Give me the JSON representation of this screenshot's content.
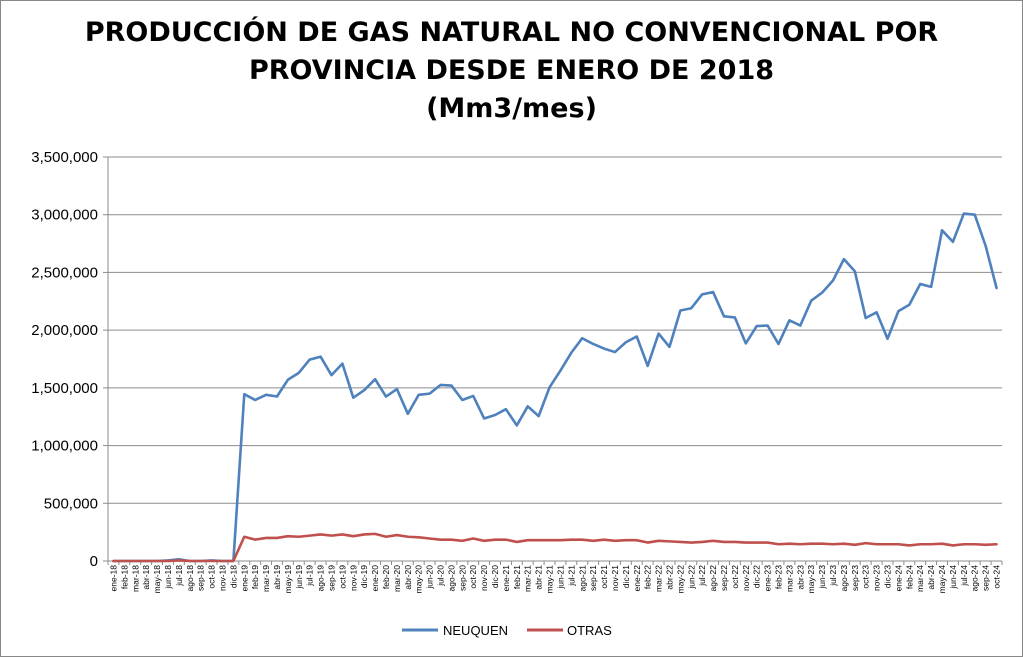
{
  "chart_data": {
    "type": "line",
    "title_lines": [
      "PRODUCCIÓN DE GAS NATURAL NO CONVENCIONAL POR",
      "PROVINCIA DESDE ENERO DE 2018",
      "(Mm3/mes)"
    ],
    "ylim": [
      0,
      3500000
    ],
    "y_ticks": [
      "0",
      "500,000",
      "1,000,000",
      "1,500,000",
      "2,000,000",
      "2,500,000",
      "3,000,000",
      "3,500,000"
    ],
    "y_tick_values": [
      0,
      500000,
      1000000,
      1500000,
      2000000,
      2500000,
      3000000,
      3500000
    ],
    "grid": "horizontal",
    "legend_position": "bottom",
    "categories": [
      "ene-18",
      "feb-18",
      "mar-18",
      "abr-18",
      "may-18",
      "jun-18",
      "jul-18",
      "ago-18",
      "sep-18",
      "oct-18",
      "nov-18",
      "dic-18",
      "ene-19",
      "feb-19",
      "mar-19",
      "abr-19",
      "may-19",
      "jun-19",
      "jul-19",
      "ago-19",
      "sep-19",
      "oct-19",
      "nov-19",
      "dic-19",
      "ene-20",
      "feb-20",
      "mar-20",
      "abr-20",
      "may-20",
      "jun-20",
      "jul-20",
      "ago-20",
      "sep-20",
      "oct-20",
      "nov-20",
      "dic-20",
      "ene-21",
      "feb-21",
      "mar-21",
      "abr-21",
      "may-21",
      "jun-21",
      "jul-21",
      "ago-21",
      "sep-21",
      "oct-21",
      "nov-21",
      "dic-21",
      "ene-22",
      "feb-22",
      "mar-22",
      "abr-22",
      "may-22",
      "jun-22",
      "jul-22",
      "ago-22",
      "sep-22",
      "oct-22",
      "nov-22",
      "dic-22",
      "ene-23",
      "feb-23",
      "mar-23",
      "abr-23",
      "may-23",
      "jun-23",
      "jul-23",
      "ago-23",
      "sep-23",
      "oct-23",
      "nov-23",
      "dic-23",
      "ene-24",
      "feb-24",
      "mar-24",
      "abr-24",
      "may-24",
      "jun-24",
      "jul-24",
      "ago-24",
      "sep-24",
      "oct-24"
    ],
    "series": [
      {
        "name": "NEUQUEN",
        "color": "#4f81bd",
        "values": [
          0,
          0,
          0,
          0,
          0,
          5000,
          15000,
          0,
          0,
          5000,
          0,
          0,
          1445000,
          1395000,
          1440000,
          1425000,
          1570000,
          1630000,
          1745000,
          1770000,
          1610000,
          1710000,
          1415000,
          1480000,
          1575000,
          1425000,
          1490000,
          1275000,
          1440000,
          1450000,
          1525000,
          1520000,
          1395000,
          1430000,
          1235000,
          1265000,
          1315000,
          1175000,
          1340000,
          1255000,
          1505000,
          1650000,
          1805000,
          1930000,
          1880000,
          1840000,
          1810000,
          1895000,
          1945000,
          1690000,
          1970000,
          1855000,
          2170000,
          2190000,
          2310000,
          2330000,
          2120000,
          2110000,
          1885000,
          2035000,
          2040000,
          1880000,
          2085000,
          2040000,
          2255000,
          2325000,
          2430000,
          2615000,
          2510000,
          2105000,
          2155000,
          1925000,
          2165000,
          2220000,
          2400000,
          2375000,
          2865000,
          2765000,
          3010000,
          3000000,
          2730000,
          2365000
        ]
      },
      {
        "name": "OTRAS",
        "color": "#c0504d",
        "values": [
          0,
          0,
          0,
          0,
          0,
          0,
          5000,
          0,
          0,
          0,
          0,
          0,
          210000,
          185000,
          200000,
          200000,
          215000,
          210000,
          220000,
          230000,
          220000,
          230000,
          215000,
          230000,
          235000,
          210000,
          225000,
          210000,
          205000,
          195000,
          185000,
          185000,
          175000,
          195000,
          175000,
          185000,
          185000,
          165000,
          180000,
          180000,
          180000,
          180000,
          185000,
          185000,
          175000,
          185000,
          175000,
          180000,
          180000,
          160000,
          175000,
          170000,
          165000,
          160000,
          165000,
          175000,
          165000,
          165000,
          160000,
          160000,
          160000,
          145000,
          150000,
          145000,
          150000,
          150000,
          145000,
          150000,
          140000,
          155000,
          145000,
          145000,
          145000,
          135000,
          145000,
          145000,
          150000,
          135000,
          145000,
          145000,
          140000,
          145000
        ]
      }
    ]
  }
}
